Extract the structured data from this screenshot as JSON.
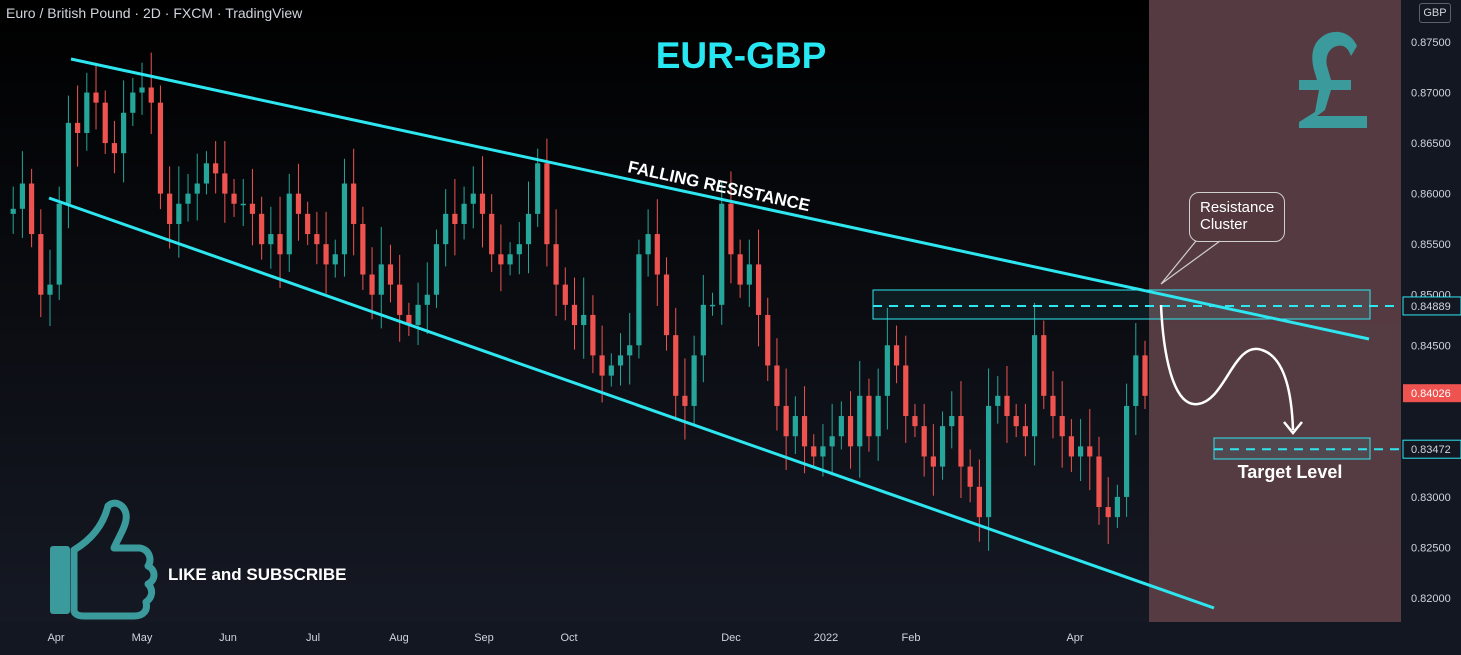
{
  "header": {
    "symbol": "Euro / British Pound",
    "interval": "2D",
    "exchange": "FXCM",
    "platform": "TradingView",
    "separator": "·"
  },
  "currency_badge": "GBP",
  "title": "EUR-GBP",
  "annotations": {
    "falling_resistance": "FALLING RESISTANCE",
    "resistance_cluster_line1": "Resistance",
    "resistance_cluster_line2": "Cluster",
    "target_level": "Target Level",
    "like_subscribe": "LIKE and SUBSCRIBE"
  },
  "colors": {
    "background": "#131722",
    "up_candle": "#26a69a",
    "down_candle": "#ef5350",
    "channel_line": "#2ee6f0",
    "title": "#27e8f2",
    "forecast_zone": "#5a3e44",
    "pound_icon": "#3b9a9c"
  },
  "icons": [
    "thumbs-up-icon",
    "pound-sign-icon"
  ],
  "chart_data": {
    "type": "candlestick",
    "price_axis": {
      "ticks": [
        "0.87500",
        "0.87000",
        "0.86500",
        "0.86000",
        "0.85500",
        "0.85000",
        "0.84500",
        "0.84000",
        "0.83500",
        "0.83000",
        "0.82500",
        "0.82000"
      ],
      "tick_values": [
        0.875,
        0.87,
        0.865,
        0.86,
        0.855,
        0.85,
        0.845,
        0.84,
        0.835,
        0.83,
        0.825,
        0.82
      ],
      "range": [
        0.8186,
        0.8782
      ]
    },
    "time_axis": {
      "labels": [
        "Apr",
        "May",
        "Jun",
        "Jul",
        "Aug",
        "Sep",
        "Oct",
        "Dec",
        "2022",
        "Feb",
        "Apr"
      ]
    },
    "price_labels": [
      {
        "value": 0.84889,
        "text": "0.84889",
        "role": "resistance"
      },
      {
        "value": 0.84026,
        "text": "0.84026",
        "role": "last"
      },
      {
        "value": 0.83472,
        "text": "0.83472",
        "role": "target"
      }
    ],
    "closes": [
      0.858,
      0.8585,
      0.861,
      0.856,
      0.85,
      0.851,
      0.859,
      0.867,
      0.866,
      0.87,
      0.869,
      0.865,
      0.864,
      0.868,
      0.87,
      0.8705,
      0.869,
      0.86,
      0.857,
      0.859,
      0.86,
      0.861,
      0.863,
      0.862,
      0.86,
      0.859,
      0.859,
      0.858,
      0.855,
      0.856,
      0.854,
      0.86,
      0.858,
      0.856,
      0.855,
      0.853,
      0.854,
      0.861,
      0.857,
      0.852,
      0.85,
      0.853,
      0.851,
      0.848,
      0.847,
      0.849,
      0.85,
      0.855,
      0.858,
      0.857,
      0.859,
      0.86,
      0.858,
      0.854,
      0.853,
      0.854,
      0.855,
      0.858,
      0.863,
      0.855,
      0.851,
      0.849,
      0.847,
      0.848,
      0.844,
      0.842,
      0.843,
      0.844,
      0.845,
      0.854,
      0.856,
      0.852,
      0.846,
      0.84,
      0.839,
      0.844,
      0.849,
      0.849,
      0.859,
      0.854,
      0.851,
      0.853,
      0.848,
      0.843,
      0.839,
      0.836,
      0.838,
      0.835,
      0.834,
      0.835,
      0.836,
      0.838,
      0.835,
      0.84,
      0.836,
      0.84,
      0.845,
      0.843,
      0.838,
      0.837,
      0.834,
      0.833,
      0.837,
      0.838,
      0.833,
      0.831,
      0.828,
      0.839,
      0.84,
      0.838,
      0.837,
      0.836,
      0.846,
      0.84,
      0.838,
      0.836,
      0.834,
      0.835,
      0.834,
      0.829,
      0.828,
      0.83,
      0.839,
      0.844,
      0.84
    ]
  }
}
